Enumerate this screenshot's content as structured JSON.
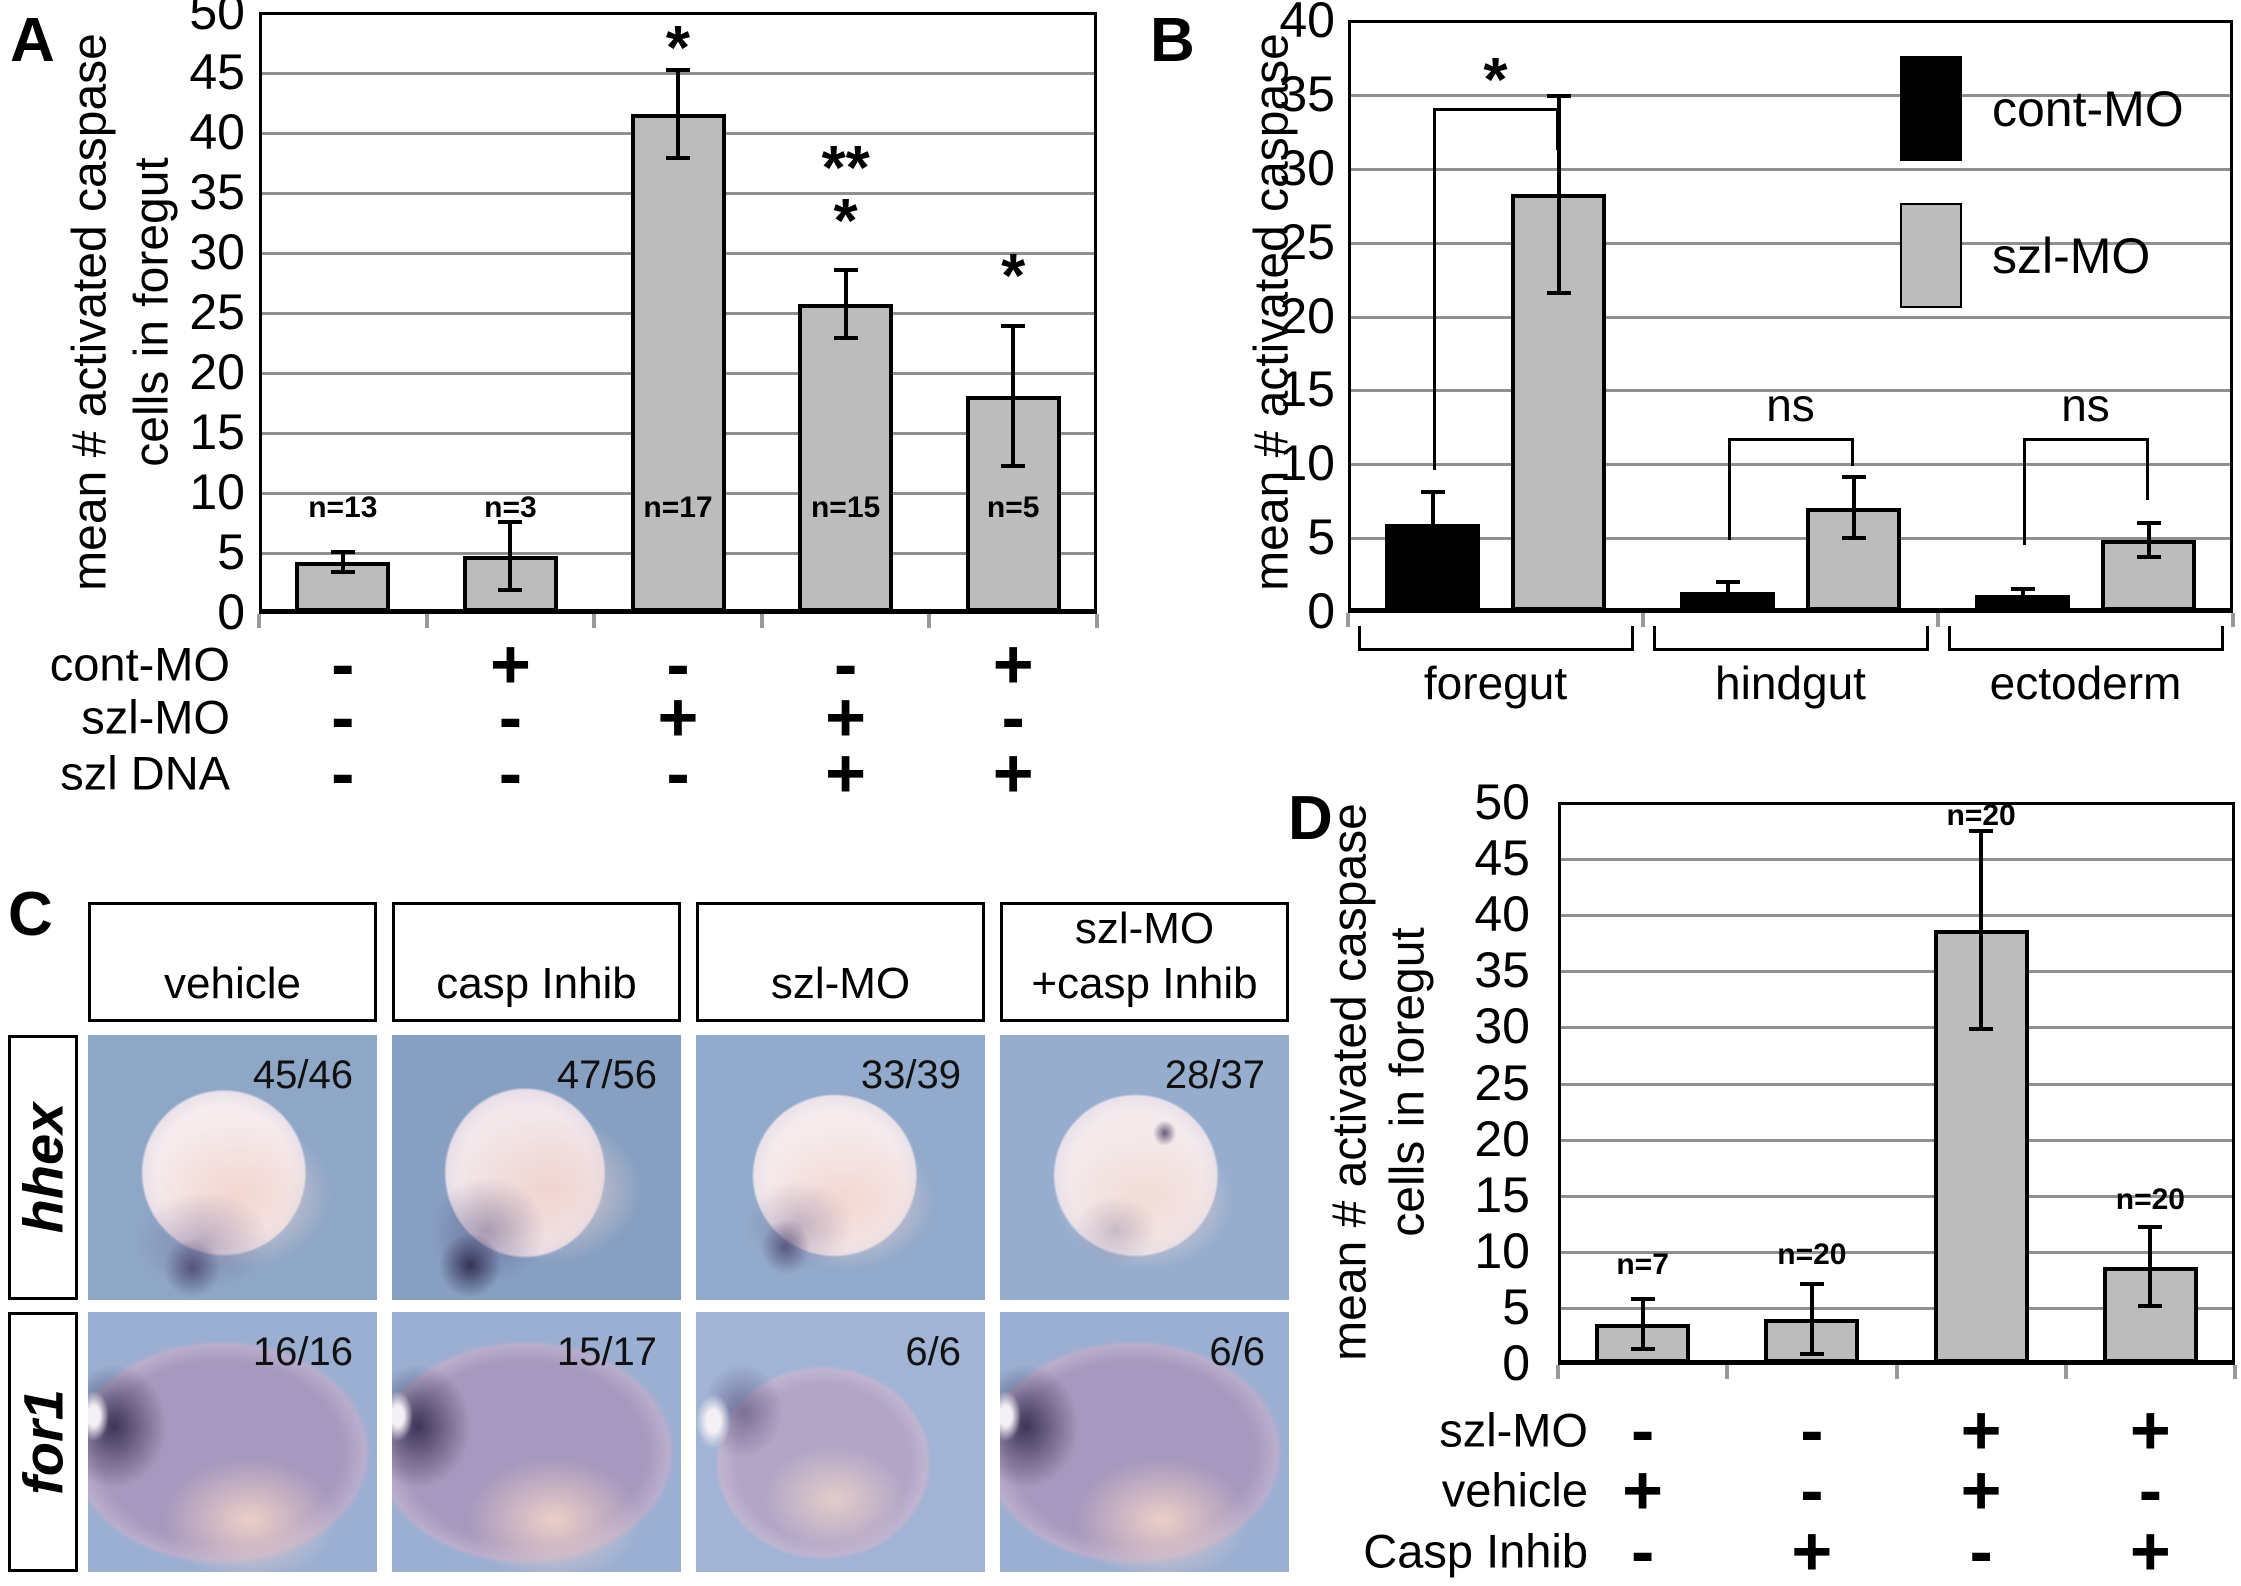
{
  "panel_labels": {
    "a": "A",
    "b": "B",
    "c": "C",
    "d": "D"
  },
  "chart_data": [
    {
      "id": "panel-A",
      "type": "bar",
      "title": "",
      "xlabel": "",
      "ylabel_lines": [
        "mean # activated caspase",
        "cells in foregut"
      ],
      "ylim": [
        0,
        50
      ],
      "ytick_step": 5,
      "grid": true,
      "bar_color": "#bcbcbc",
      "values": [
        4.2,
        4.7,
        41.5,
        25.7,
        18.0
      ],
      "errors": [
        1.0,
        3.0,
        3.8,
        3.0,
        6.0
      ],
      "n_labels": [
        "n=13",
        "n=3",
        "n=17",
        "n=15",
        "n=5"
      ],
      "sig": [
        [],
        [],
        [
          "*"
        ],
        [
          "**",
          "*"
        ],
        [
          "*"
        ]
      ],
      "condition_rows": [
        {
          "label": "cont-MO",
          "flags": [
            "-",
            "+",
            "-",
            "-",
            "+"
          ]
        },
        {
          "label": "szl-MO",
          "flags": [
            "-",
            "-",
            "+",
            "+",
            "-"
          ]
        },
        {
          "label": "szl DNA",
          "flags": [
            "-",
            "-",
            "-",
            "+",
            "+"
          ]
        }
      ]
    },
    {
      "id": "panel-B",
      "type": "grouped-bar",
      "title": "",
      "xlabel": "",
      "ylabel_lines": [
        "mean # activated caspase"
      ],
      "ylim": [
        0,
        40
      ],
      "ytick_step": 5,
      "grid": true,
      "legend_position": "top-right",
      "categories": [
        "foregut",
        "hindgut",
        "ectoderm"
      ],
      "series": [
        {
          "name": "cont-MO",
          "color": "#000000",
          "values": [
            5.9,
            1.3,
            1.1
          ],
          "errors": [
            2.3,
            0.8,
            0.5
          ]
        },
        {
          "name": "szl-MO",
          "color": "#bcbcbc",
          "values": [
            28.2,
            7.0,
            4.8
          ],
          "errors": [
            6.8,
            2.2,
            1.3
          ]
        }
      ],
      "group_sig": [
        "*",
        "ns",
        "ns"
      ]
    },
    {
      "id": "panel-D",
      "type": "bar",
      "title": "",
      "xlabel": "",
      "ylabel_lines": [
        "mean # activated caspase",
        "cells in foregut"
      ],
      "ylim": [
        0,
        50
      ],
      "ytick_step": 5,
      "grid": true,
      "bar_color": "#bcbcbc",
      "values": [
        3.5,
        3.9,
        38.6,
        8.6
      ],
      "errors": [
        2.4,
        3.3,
        9.0,
        3.7
      ],
      "n_labels": [
        "n=7",
        "n=20",
        "n=20",
        "n=20"
      ],
      "sig": [
        [],
        [],
        [],
        []
      ],
      "condition_rows": [
        {
          "label": "szl-MO",
          "flags": [
            "-",
            "-",
            "+",
            "+"
          ]
        },
        {
          "label": "vehicle",
          "flags": [
            "+",
            "-",
            "+",
            "-"
          ]
        },
        {
          "label": "Casp Inhib",
          "flags": [
            "-",
            "+",
            "-",
            "+"
          ]
        }
      ]
    }
  ],
  "panel_c": {
    "column_headers": [
      [
        "vehicle"
      ],
      [
        "casp Inhib"
      ],
      [
        "szl-MO"
      ],
      [
        "szl-MO",
        "+casp Inhib"
      ]
    ],
    "rows": [
      {
        "gene": "hhex",
        "counts": [
          "45/46",
          "47/56",
          "33/39",
          "28/37"
        ]
      },
      {
        "gene": "for1",
        "counts": [
          "16/16",
          "15/17",
          "6/6",
          "6/6"
        ]
      }
    ]
  }
}
